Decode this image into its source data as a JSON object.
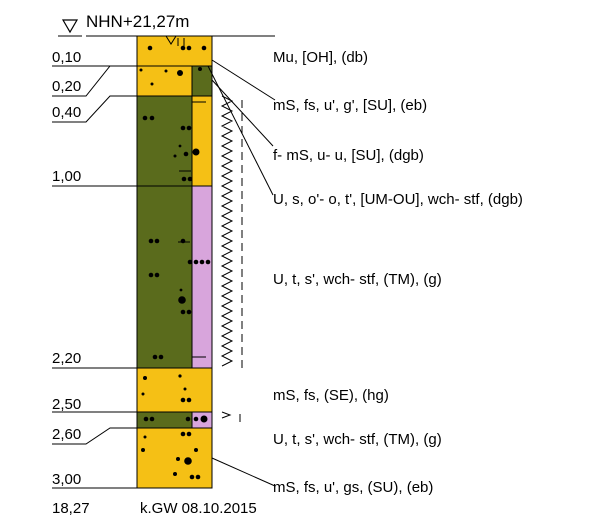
{
  "header": {
    "elevation": "NHN+21,27m"
  },
  "depths": [
    {
      "label": "0,10"
    },
    {
      "label": "0,20"
    },
    {
      "label": "0,40"
    },
    {
      "label": "1,00"
    },
    {
      "label": "2,20"
    },
    {
      "label": "2,50"
    },
    {
      "label": "2,60"
    },
    {
      "label": "3,00"
    }
  ],
  "descriptions": [
    {
      "text": "Mu, [OH], (db)"
    },
    {
      "text": "mS, fs, u', g', [SU], (eb)"
    },
    {
      "text": "f- mS, u- u, [SU], (dgb)"
    },
    {
      "text": "U, s, o'- o, t', [UM-OU], wch- stf, (dgb)"
    },
    {
      "text": "U, t, s', wch- stf, (TM), (g)"
    },
    {
      "text": "mS, fs, (SE), (hg)"
    },
    {
      "text": "U, t, s', wch- stf, (TM), (g)"
    },
    {
      "text": "mS, fs, u', gs, (SU), (eb)"
    }
  ],
  "footer": {
    "bottom_elevation": "18,27",
    "groundwater": "k.GW 08.10.2015"
  },
  "colors": {
    "sand": "#f5c015",
    "silt": "#5a6b1c",
    "clay": "#d8a5dc"
  }
}
